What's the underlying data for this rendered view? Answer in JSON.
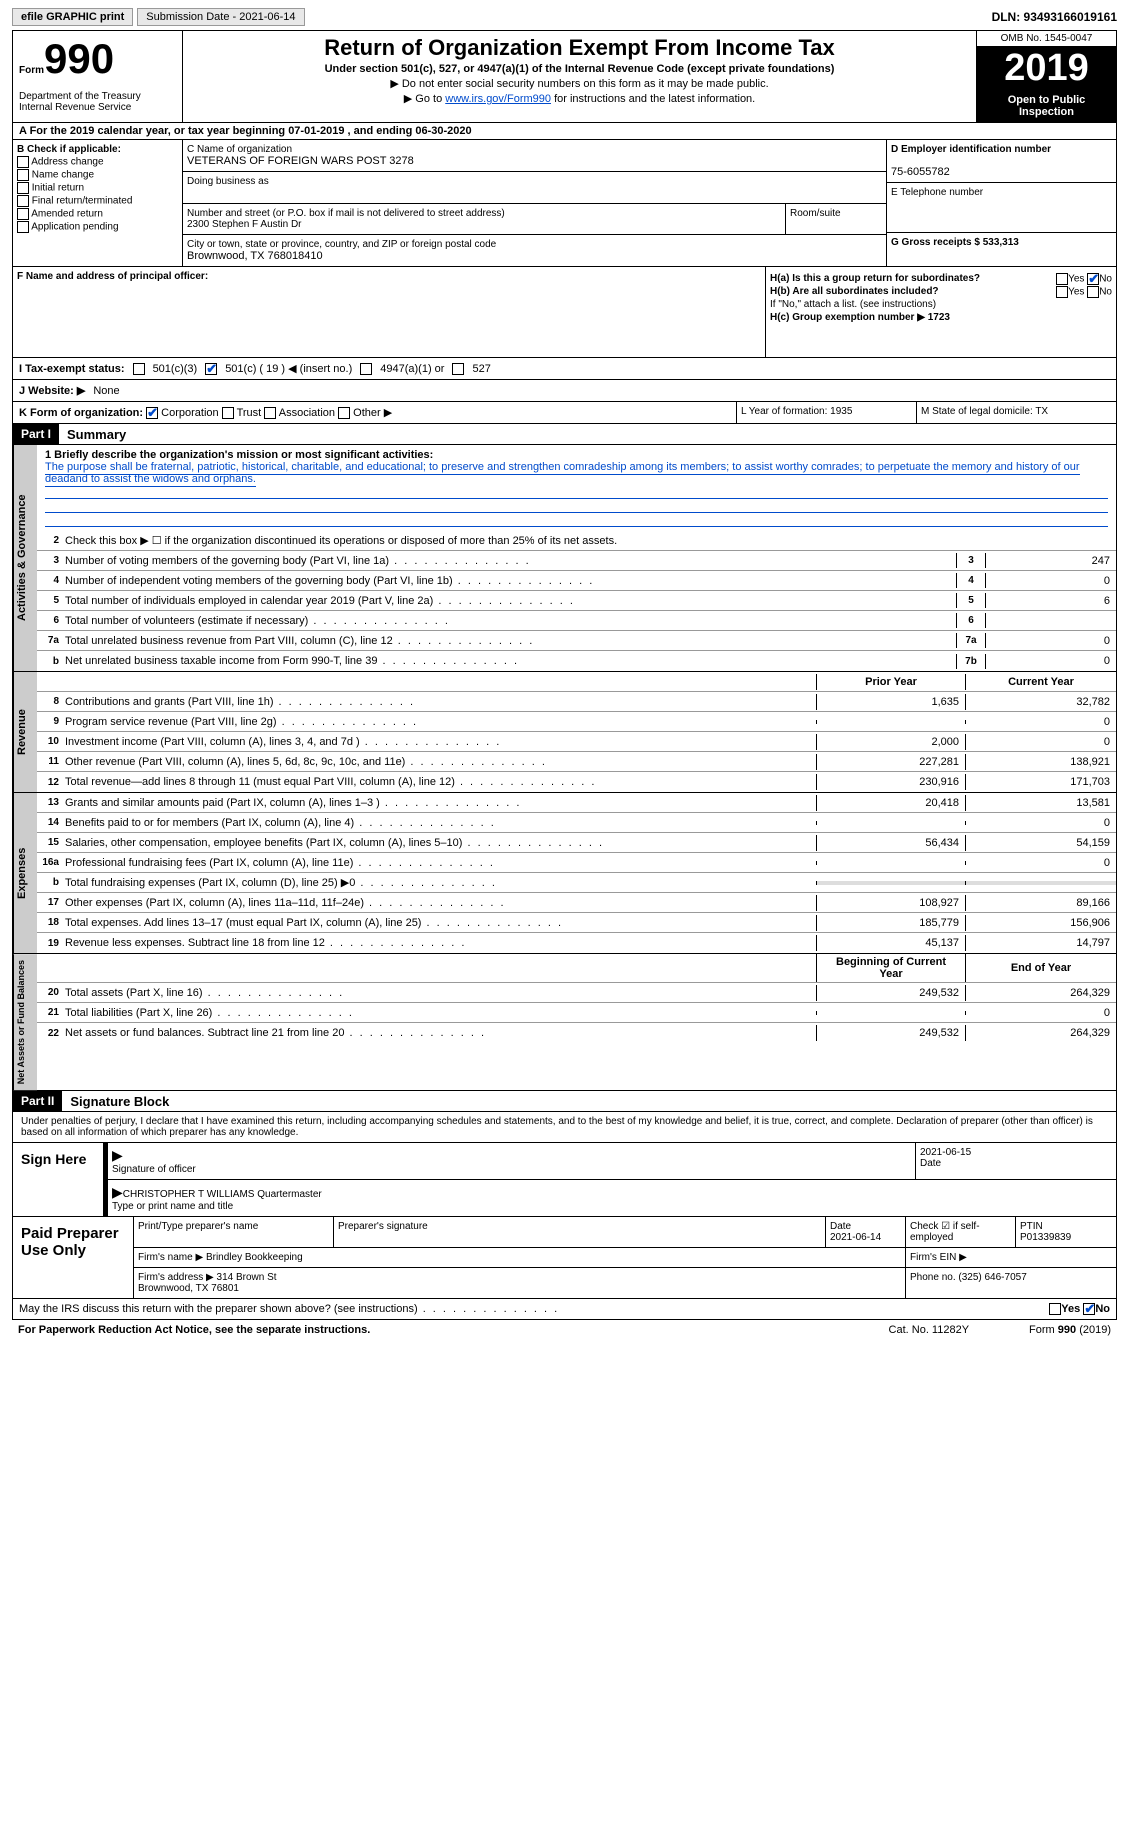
{
  "topbar": {
    "efile": "efile GRAPHIC print",
    "submission_label": "Submission Date - 2021-06-14",
    "dln_label": "DLN: 93493166019161"
  },
  "header": {
    "form_prefix": "Form",
    "form_num": "990",
    "dept": "Department of the Treasury\nInternal Revenue Service",
    "title": "Return of Organization Exempt From Income Tax",
    "subtitle": "Under section 501(c), 527, or 4947(a)(1) of the Internal Revenue Code (except private foundations)",
    "nossn": "▶ Do not enter social security numbers on this form as it may be made public.",
    "goto_pre": "▶ Go to ",
    "goto_link": "www.irs.gov/Form990",
    "goto_post": " for instructions and the latest information.",
    "omb": "OMB No. 1545-0047",
    "year": "2019",
    "open1": "Open to Public",
    "open2": "Inspection"
  },
  "row_a": "A For the 2019 calendar year, or tax year beginning 07-01-2019    , and ending 06-30-2020",
  "col_b": {
    "header": "B Check if applicable:",
    "items": [
      "Address change",
      "Name change",
      "Initial return",
      "Final return/terminated",
      "Amended return",
      "Application pending"
    ]
  },
  "org": {
    "c_label": "C Name of organization",
    "c_name": "VETERANS OF FOREIGN WARS POST 3278",
    "dba": "Doing business as",
    "addr_label": "Number and street (or P.O. box if mail is not delivered to street address)",
    "addr": "2300 Stephen F Austin Dr",
    "room": "Room/suite",
    "city_label": "City or town, state or province, country, and ZIP or foreign postal code",
    "city": "Brownwood, TX  768018410"
  },
  "col_d": {
    "d_label": "D Employer identification number",
    "d_val": "75-6055782",
    "e_label": "E Telephone number",
    "g_label": "G Gross receipts $ 533,313"
  },
  "f": {
    "label": "F  Name and address of principal officer:"
  },
  "h": {
    "a": "H(a)  Is this a group return for subordinates?",
    "b": "H(b)  Are all subordinates included?",
    "b_note": "If \"No,\" attach a list. (see instructions)",
    "c": "H(c)  Group exemption number ▶   1723",
    "yes": "Yes",
    "no": "No"
  },
  "i": {
    "label": "I   Tax-exempt status:",
    "c3": "501(c)(3)",
    "c_other": "501(c) ( 19 ) ◀ (insert no.)",
    "a4947": "4947(a)(1) or",
    "s527": "527"
  },
  "j": {
    "label": "J   Website: ▶",
    "val": "None"
  },
  "k": {
    "label": "K Form of organization:",
    "corp": "Corporation",
    "trust": "Trust",
    "assoc": "Association",
    "other": "Other ▶",
    "l": "L Year of formation: 1935",
    "m": "M State of legal domicile: TX"
  },
  "part1": {
    "hdr": "Part I",
    "title": "Summary"
  },
  "summary": {
    "gov_label": "Activities & Governance",
    "rev_label": "Revenue",
    "exp_label": "Expenses",
    "net_label": "Net Assets or Fund Balances",
    "l1_pre": "1  Briefly describe the organization's mission or most significant activities:",
    "l1_text": "The purpose shall be fraternal, patriotic, historical, charitable, and educational; to preserve and strengthen comradeship among its members; to assist worthy comrades; to perpetuate the memory and history of our deadand to assist the widows and orphans.",
    "l2": "Check this box ▶ ☐  if the organization discontinued its operations or disposed of more than 25% of its net assets.",
    "lines_gov": [
      {
        "n": "3",
        "t": "Number of voting members of the governing body (Part VI, line 1a)",
        "box": "3",
        "v": "247"
      },
      {
        "n": "4",
        "t": "Number of independent voting members of the governing body (Part VI, line 1b)",
        "box": "4",
        "v": "0"
      },
      {
        "n": "5",
        "t": "Total number of individuals employed in calendar year 2019 (Part V, line 2a)",
        "box": "5",
        "v": "6"
      },
      {
        "n": "6",
        "t": "Total number of volunteers (estimate if necessary)",
        "box": "6",
        "v": ""
      },
      {
        "n": "7a",
        "t": "Total unrelated business revenue from Part VIII, column (C), line 12",
        "box": "7a",
        "v": "0"
      },
      {
        "n": "b",
        "t": "Net unrelated business taxable income from Form 990-T, line 39",
        "box": "7b",
        "v": "0"
      }
    ],
    "prior_hdr": "Prior Year",
    "curr_hdr": "Current Year",
    "lines_rev": [
      {
        "n": "8",
        "t": "Contributions and grants (Part VIII, line 1h)",
        "p": "1,635",
        "c": "32,782"
      },
      {
        "n": "9",
        "t": "Program service revenue (Part VIII, line 2g)",
        "p": "",
        "c": "0"
      },
      {
        "n": "10",
        "t": "Investment income (Part VIII, column (A), lines 3, 4, and 7d )",
        "p": "2,000",
        "c": "0"
      },
      {
        "n": "11",
        "t": "Other revenue (Part VIII, column (A), lines 5, 6d, 8c, 9c, 10c, and 11e)",
        "p": "227,281",
        "c": "138,921"
      },
      {
        "n": "12",
        "t": "Total revenue—add lines 8 through 11 (must equal Part VIII, column (A), line 12)",
        "p": "230,916",
        "c": "171,703"
      }
    ],
    "lines_exp": [
      {
        "n": "13",
        "t": "Grants and similar amounts paid (Part IX, column (A), lines 1–3 )",
        "p": "20,418",
        "c": "13,581"
      },
      {
        "n": "14",
        "t": "Benefits paid to or for members (Part IX, column (A), line 4)",
        "p": "",
        "c": "0"
      },
      {
        "n": "15",
        "t": "Salaries, other compensation, employee benefits (Part IX, column (A), lines 5–10)",
        "p": "56,434",
        "c": "54,159"
      },
      {
        "n": "16a",
        "t": "Professional fundraising fees (Part IX, column (A), line 11e)",
        "p": "",
        "c": "0"
      },
      {
        "n": "b",
        "t": "Total fundraising expenses (Part IX, column (D), line 25) ▶0",
        "p": "",
        "c": "",
        "shaded": true
      },
      {
        "n": "17",
        "t": "Other expenses (Part IX, column (A), lines 11a–11d, 11f–24e)",
        "p": "108,927",
        "c": "89,166"
      },
      {
        "n": "18",
        "t": "Total expenses. Add lines 13–17 (must equal Part IX, column (A), line 25)",
        "p": "185,779",
        "c": "156,906"
      },
      {
        "n": "19",
        "t": "Revenue less expenses. Subtract line 18 from line 12",
        "p": "45,137",
        "c": "14,797"
      }
    ],
    "beg_hdr": "Beginning of Current Year",
    "end_hdr": "End of Year",
    "lines_net": [
      {
        "n": "20",
        "t": "Total assets (Part X, line 16)",
        "p": "249,532",
        "c": "264,329"
      },
      {
        "n": "21",
        "t": "Total liabilities (Part X, line 26)",
        "p": "",
        "c": "0"
      },
      {
        "n": "22",
        "t": "Net assets or fund balances. Subtract line 21 from line 20",
        "p": "249,532",
        "c": "264,329"
      }
    ]
  },
  "part2": {
    "hdr": "Part II",
    "title": "Signature Block"
  },
  "sig": {
    "penalties": "Under penalties of perjury, I declare that I have examined this return, including accompanying schedules and statements, and to the best of my knowledge and belief, it is true, correct, and complete. Declaration of preparer (other than officer) is based on all information of which preparer has any knowledge.",
    "sign_here": "Sign Here",
    "sig_officer": "Signature of officer",
    "date1": "2021-06-15",
    "date_lbl": "Date",
    "officer_name": "CHRISTOPHER T WILLIAMS Quartermaster",
    "type_name": "Type or print name and title"
  },
  "prep": {
    "label": "Paid Preparer Use Only",
    "print_name": "Print/Type preparer's name",
    "prep_sig": "Preparer's signature",
    "date_lbl": "Date",
    "date_val": "2021-06-14",
    "check_self": "Check ☑ if self-employed",
    "ptin_lbl": "PTIN",
    "ptin": "P01339839",
    "firm_name_lbl": "Firm's name    ▶",
    "firm_name": "Brindley Bookkeeping",
    "firm_ein": "Firm's EIN ▶",
    "firm_addr_lbl": "Firm's address ▶",
    "firm_addr": "314 Brown St\nBrownwood, TX  76801",
    "phone_lbl": "Phone no. (325) 646-7057"
  },
  "footer": {
    "discuss": "May the IRS discuss this return with the preparer shown above? (see instructions)",
    "yes": "Yes",
    "no": "No",
    "paperwork": "For Paperwork Reduction Act Notice, see the separate instructions.",
    "cat": "Cat. No. 11282Y",
    "form": "Form 990 (2019)"
  }
}
